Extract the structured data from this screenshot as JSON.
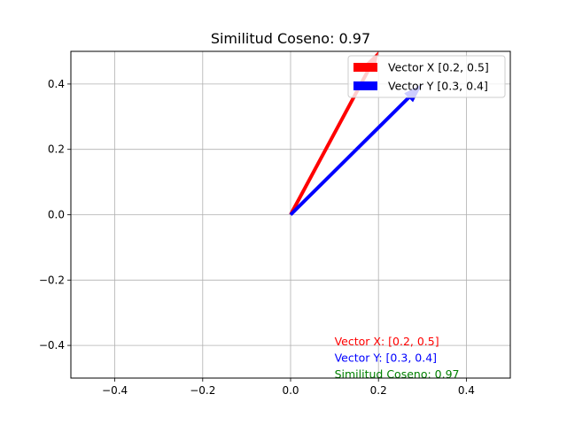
{
  "chart_data": {
    "type": "quiver",
    "title": "Similitud Coseno: 0.97",
    "xlim": [
      -0.5,
      0.5
    ],
    "ylim": [
      -0.5,
      0.5
    ],
    "x_ticks": [
      -0.4,
      -0.2,
      0.0,
      0.2,
      0.4
    ],
    "x_tick_labels": [
      "−0.4",
      "−0.2",
      "0.0",
      "0.2",
      "0.4"
    ],
    "y_ticks": [
      -0.4,
      -0.2,
      0.0,
      0.2,
      0.4
    ],
    "y_tick_labels": [
      "−0.4",
      "−0.2",
      "0.0",
      "0.2",
      "0.4"
    ],
    "grid": true,
    "legend_location": "top-right",
    "series": [
      {
        "name": "Vector X [0.2, 0.5]",
        "origin": [
          0,
          0
        ],
        "vector": [
          0.2,
          0.5
        ],
        "color": "#ff0000"
      },
      {
        "name": "Vector Y [0.3, 0.4]",
        "origin": [
          0,
          0
        ],
        "vector": [
          0.3,
          0.4
        ],
        "color": "#0000ff"
      }
    ],
    "annotations": [
      {
        "text": "Vector X: [0.2, 0.5]",
        "x": 0.1,
        "y": -0.4,
        "color": "#ff0000"
      },
      {
        "text": "Vector Y: [0.3, 0.4]",
        "x": 0.1,
        "y": -0.45,
        "color": "#0000ff"
      },
      {
        "text": "Similitud Coseno: 0.97",
        "x": 0.1,
        "y": -0.5,
        "color": "#008000"
      }
    ]
  }
}
